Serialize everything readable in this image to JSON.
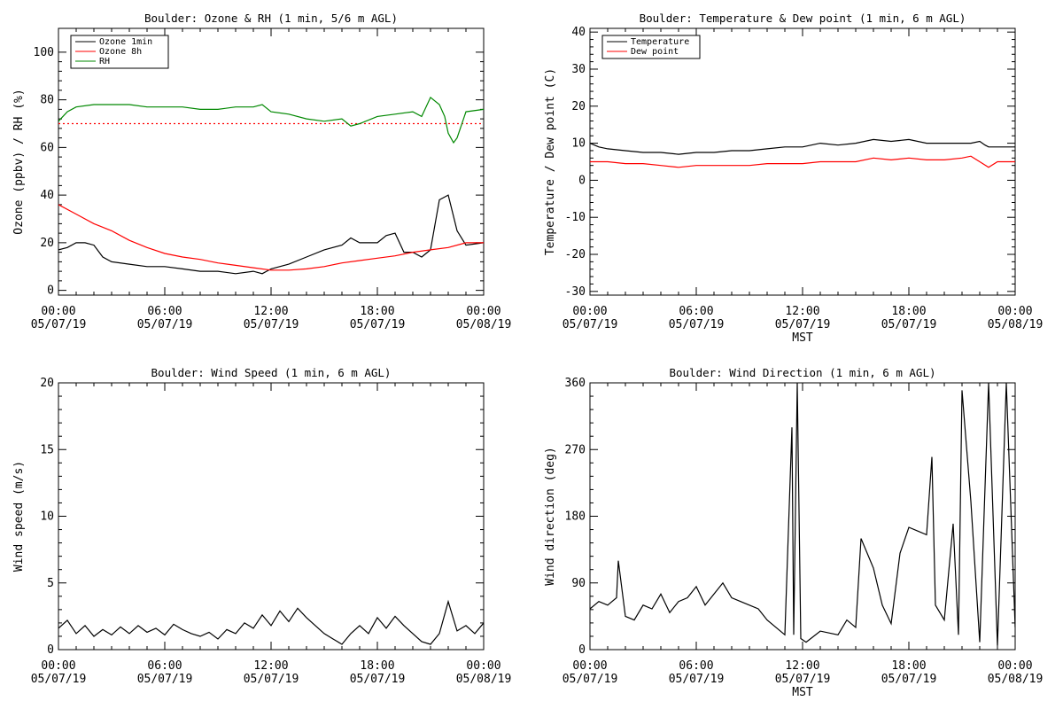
{
  "chart_data": [
    {
      "type": "line",
      "title": "Boulder: Ozone & RH (1 min, 5/6 m AGL)",
      "ylabel": "Ozone (ppbv) / RH (%)",
      "xlabel": "",
      "xlim": [
        0,
        24
      ],
      "ylim": [
        -2,
        110
      ],
      "yticks": [
        0,
        20,
        40,
        60,
        80,
        100
      ],
      "xtick_times": [
        "00:00",
        "06:00",
        "12:00",
        "18:00",
        "00:00"
      ],
      "xtick_dates": [
        "05/07/19",
        "05/07/19",
        "05/07/19",
        "05/07/19",
        "05/08/19"
      ],
      "grid": false,
      "legend_position": "top-left",
      "legend": [
        "Ozone 1min",
        "Ozone 8h",
        "RH"
      ],
      "series": [
        {
          "name": "Ozone 1min",
          "color": "#000000",
          "style": "solid",
          "x": [
            0,
            0.5,
            1,
            1.5,
            2,
            2.5,
            3,
            4,
            5,
            6,
            7,
            8,
            9,
            10,
            11,
            11.5,
            12,
            13,
            14,
            15,
            16,
            16.5,
            17,
            18,
            18.5,
            19,
            19.5,
            20,
            20.5,
            21,
            21.5,
            22,
            22.5,
            23,
            24
          ],
          "y": [
            17,
            18,
            20,
            20,
            19,
            14,
            12,
            11,
            10,
            10,
            9,
            8,
            8,
            7,
            8,
            7,
            9,
            11,
            14,
            17,
            19,
            22,
            20,
            20,
            23,
            24,
            16,
            16,
            14,
            17,
            38,
            40,
            25,
            19,
            20
          ]
        },
        {
          "name": "Ozone 8h",
          "color": "#ff0000",
          "style": "solid",
          "x": [
            0,
            1,
            2,
            3,
            4,
            5,
            6,
            7,
            8,
            9,
            10,
            11,
            12,
            13,
            14,
            15,
            16,
            17,
            18,
            19,
            20,
            21,
            22,
            23,
            24
          ],
          "y": [
            36,
            32,
            28,
            25,
            21,
            18,
            15.5,
            14,
            13,
            11.5,
            10.5,
            9.5,
            8.5,
            8.5,
            9,
            10,
            11.5,
            12.5,
            13.5,
            14.5,
            16,
            17,
            18,
            20,
            20
          ]
        },
        {
          "name": "Ozone 8h threshold",
          "color": "#ff0000",
          "style": "dotted",
          "x": [
            0,
            24
          ],
          "y": [
            70,
            70
          ]
        },
        {
          "name": "RH",
          "color": "#008800",
          "style": "solid",
          "x": [
            0,
            0.5,
            1,
            2,
            3,
            4,
            5,
            6,
            7,
            8,
            9,
            10,
            11,
            11.5,
            12,
            13,
            14,
            15,
            16,
            16.5,
            17,
            18,
            19,
            20,
            20.5,
            21,
            21.5,
            21.8,
            22,
            22.3,
            22.5,
            23,
            24
          ],
          "y": [
            71,
            75,
            77,
            78,
            78,
            78,
            77,
            77,
            77,
            76,
            76,
            77,
            77,
            78,
            75,
            74,
            72,
            71,
            72,
            69,
            70,
            73,
            74,
            75,
            73,
            81,
            78,
            73,
            66,
            62,
            64,
            75,
            76
          ]
        }
      ]
    },
    {
      "type": "line",
      "title": "Boulder: Temperature & Dew point (1 min, 6 m AGL)",
      "ylabel": "Temperature / Dew point (C)",
      "xlabel": "MST",
      "xlim": [
        0,
        24
      ],
      "ylim": [
        -31,
        41
      ],
      "yticks": [
        -30,
        -20,
        -10,
        0,
        10,
        20,
        30,
        40
      ],
      "xtick_times": [
        "00:00",
        "06:00",
        "12:00",
        "18:00",
        "00:00"
      ],
      "xtick_dates": [
        "05/07/19",
        "05/07/19",
        "05/07/19",
        "05/07/19",
        "05/08/19"
      ],
      "grid": false,
      "legend_position": "top-left",
      "legend": [
        "Temperature",
        "Dew point"
      ],
      "series": [
        {
          "name": "Temperature",
          "color": "#000000",
          "style": "solid",
          "x": [
            0,
            0.5,
            1,
            2,
            3,
            4,
            5,
            6,
            7,
            8,
            9,
            10,
            11,
            12,
            13,
            14,
            15,
            16,
            17,
            18,
            19,
            20,
            21,
            21.5,
            22,
            22.3,
            22.5,
            23,
            24
          ],
          "y": [
            10,
            9,
            8.5,
            8,
            7.5,
            7.5,
            7,
            7.5,
            7.5,
            8,
            8,
            8.5,
            9,
            9,
            10,
            9.5,
            10,
            11,
            10.5,
            11,
            10,
            10,
            10,
            10,
            10.5,
            9.5,
            9,
            9,
            9
          ]
        },
        {
          "name": "Dew point",
          "color": "#ff0000",
          "style": "solid",
          "x": [
            0,
            1,
            2,
            3,
            4,
            5,
            6,
            7,
            8,
            9,
            10,
            11,
            12,
            13,
            14,
            15,
            16,
            17,
            18,
            19,
            20,
            21,
            21.5,
            22,
            22.5,
            23,
            24
          ],
          "y": [
            5,
            5,
            4.5,
            4.5,
            4,
            3.5,
            4,
            4,
            4,
            4,
            4.5,
            4.5,
            4.5,
            5,
            5,
            5,
            6,
            5.5,
            6,
            5.5,
            5.5,
            6,
            6.5,
            5,
            3.5,
            5,
            5
          ]
        }
      ]
    },
    {
      "type": "line",
      "title": "Boulder: Wind Speed (1 min, 6 m AGL)",
      "ylabel": "Wind speed (m/s)",
      "xlabel": "",
      "xlim": [
        0,
        24
      ],
      "ylim": [
        0,
        20
      ],
      "yticks": [
        0,
        5,
        10,
        15,
        20
      ],
      "xtick_times": [
        "00:00",
        "06:00",
        "12:00",
        "18:00",
        "00:00"
      ],
      "xtick_dates": [
        "05/07/19",
        "05/07/19",
        "05/07/19",
        "05/07/19",
        "05/08/19"
      ],
      "grid": false,
      "series": [
        {
          "name": "Wind speed",
          "color": "#000000",
          "style": "solid",
          "x": [
            0,
            0.5,
            1,
            1.5,
            2,
            2.5,
            3,
            3.5,
            4,
            4.5,
            5,
            5.5,
            6,
            6.5,
            7,
            7.5,
            8,
            8.5,
            9,
            9.5,
            10,
            10.5,
            11,
            11.5,
            12,
            12.5,
            13,
            13.5,
            14,
            14.5,
            15,
            15.5,
            16,
            16.5,
            17,
            17.5,
            18,
            18.5,
            19,
            19.5,
            20,
            20.5,
            21,
            21.5,
            22,
            22.5,
            23,
            23.5,
            24
          ],
          "y": [
            1.6,
            2.2,
            1.2,
            1.8,
            1,
            1.5,
            1.1,
            1.7,
            1.2,
            1.8,
            1.3,
            1.6,
            1.1,
            1.9,
            1.5,
            1.2,
            1,
            1.3,
            0.8,
            1.5,
            1.2,
            2,
            1.6,
            2.6,
            1.8,
            2.9,
            2.1,
            3.1,
            2.4,
            1.8,
            1.2,
            0.8,
            0.4,
            1.2,
            1.8,
            1.2,
            2.4,
            1.6,
            2.5,
            1.8,
            1.2,
            0.6,
            0.4,
            1.2,
            3.6,
            1.4,
            1.8,
            1.2,
            2
          ]
        }
      ]
    },
    {
      "type": "scatter",
      "title": "Boulder: Wind Direction (1 min, 6 m AGL)",
      "ylabel": "Wind direction (deg)",
      "xlabel": "MST",
      "xlim": [
        0,
        24
      ],
      "ylim": [
        0,
        360
      ],
      "yticks": [
        0,
        90,
        180,
        270,
        360
      ],
      "xtick_times": [
        "00:00",
        "06:00",
        "12:00",
        "18:00",
        "00:00"
      ],
      "xtick_dates": [
        "05/07/19",
        "05/07/19",
        "05/07/19",
        "05/07/19",
        "05/08/19"
      ],
      "grid": false,
      "series": [
        {
          "name": "Wind direction",
          "color": "#000000",
          "style": "solid",
          "x": [
            0,
            0.5,
            1,
            1.5,
            1.6,
            2,
            2.5,
            3,
            3.5,
            4,
            4.5,
            5,
            5.5,
            6,
            6.5,
            7,
            7.5,
            8,
            8.5,
            9,
            9.5,
            10,
            10.5,
            11,
            11.4,
            11.5,
            11.7,
            11.9,
            12.2,
            13,
            14,
            14.5,
            15,
            15.3,
            16,
            16.5,
            17,
            17.5,
            18,
            18.5,
            19,
            19.3,
            19.5,
            20,
            20.5,
            20.8,
            21,
            21.5,
            22,
            22.5,
            23,
            23.5,
            24
          ],
          "y": [
            55,
            65,
            60,
            70,
            120,
            45,
            40,
            60,
            55,
            75,
            50,
            65,
            70,
            85,
            60,
            75,
            90,
            70,
            65,
            60,
            55,
            40,
            30,
            20,
            300,
            20,
            360,
            15,
            10,
            25,
            20,
            40,
            30,
            150,
            110,
            60,
            35,
            130,
            165,
            160,
            155,
            260,
            60,
            40,
            170,
            20,
            350,
            200,
            10,
            360,
            5,
            360,
            30
          ]
        }
      ]
    }
  ]
}
